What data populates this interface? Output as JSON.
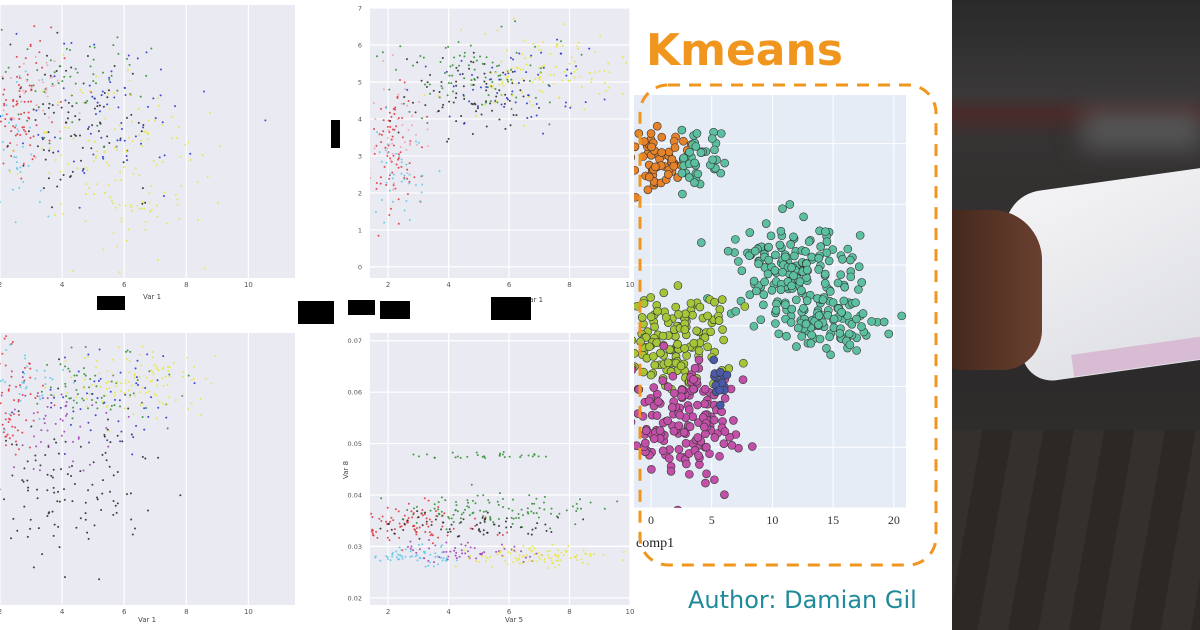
{
  "title": "Kmeans",
  "author": "Author: Damian Gil",
  "accent_orange": "#f0961e",
  "accent_teal": "#1f8a9a",
  "chart_data": [
    {
      "type": "scatter",
      "id": "plot-a",
      "xlabel": "Var 1",
      "ylabel": "",
      "xlim": [
        2,
        11.5
      ],
      "ylim": [
        0,
        10
      ],
      "xticks": [
        "2",
        "4",
        "6",
        "8",
        "10"
      ],
      "yticks": [],
      "clusters": [
        {
          "color": "#e0303a",
          "cx": 2.6,
          "cy": 6.3,
          "sx": 0.6,
          "sy": 1.3,
          "n": 90
        },
        {
          "color": "#5bc8e8",
          "cx": 2.4,
          "cy": 4.5,
          "sx": 0.5,
          "sy": 1.5,
          "n": 40
        },
        {
          "color": "#222222",
          "cx": 4.5,
          "cy": 5.8,
          "sx": 1.2,
          "sy": 1.3,
          "n": 90
        },
        {
          "color": "#2a8a2a",
          "cx": 4.5,
          "cy": 7.2,
          "sx": 1.3,
          "sy": 1.0,
          "n": 60
        },
        {
          "color": "#1f2ecc",
          "cx": 5.5,
          "cy": 6.0,
          "sx": 1.6,
          "sy": 1.3,
          "n": 70
        },
        {
          "color": "#e8e83a",
          "cx": 6.0,
          "cy": 3.8,
          "sx": 1.5,
          "sy": 1.9,
          "n": 150
        },
        {
          "color": "#f0a0b0",
          "cx": 3.0,
          "cy": 6.8,
          "sx": 0.7,
          "sy": 1.0,
          "n": 40
        }
      ]
    },
    {
      "type": "scatter",
      "id": "plot-b",
      "xlabel": "Var 1",
      "ylabel": "",
      "xlim": [
        1.4,
        10
      ],
      "ylim": [
        -0.3,
        7
      ],
      "xticks": [
        "2",
        "4",
        "6",
        "8",
        "10"
      ],
      "yticks": [
        "0",
        "1",
        "2",
        "3",
        "4",
        "5",
        "6",
        "7"
      ],
      "clusters": [
        {
          "color": "#e0303a",
          "cx": 2.2,
          "cy": 3.2,
          "sx": 0.4,
          "sy": 0.9,
          "n": 80
        },
        {
          "color": "#5bc8e8",
          "cx": 2.4,
          "cy": 2.6,
          "sx": 0.5,
          "sy": 0.6,
          "n": 40
        },
        {
          "color": "#f0a0b0",
          "cx": 2.3,
          "cy": 3.8,
          "sx": 0.5,
          "sy": 0.8,
          "n": 40
        },
        {
          "color": "#222222",
          "cx": 4.5,
          "cy": 4.6,
          "sx": 1.0,
          "sy": 0.6,
          "n": 80
        },
        {
          "color": "#2a8a2a",
          "cx": 5.0,
          "cy": 5.2,
          "sx": 1.5,
          "sy": 0.5,
          "n": 90
        },
        {
          "color": "#1f2ecc",
          "cx": 6.0,
          "cy": 4.9,
          "sx": 1.5,
          "sy": 0.6,
          "n": 60
        },
        {
          "color": "#e8e83a",
          "cx": 7.0,
          "cy": 5.2,
          "sx": 1.3,
          "sy": 0.5,
          "n": 110
        }
      ]
    },
    {
      "type": "scatter",
      "id": "plot-c",
      "xlabel": "Var 1",
      "ylabel": "",
      "xlim": [
        2,
        11.5
      ],
      "ylim": [
        0,
        10
      ],
      "xticks": [
        "2",
        "4",
        "6",
        "8",
        "10"
      ],
      "yticks": [],
      "clusters": [
        {
          "color": "#e0303a",
          "cx": 2.4,
          "cy": 7.5,
          "sx": 0.5,
          "sy": 1.2,
          "n": 80
        },
        {
          "color": "#5bc8e8",
          "cx": 2.6,
          "cy": 8.2,
          "sx": 0.7,
          "sy": 0.6,
          "n": 40
        },
        {
          "color": "#222222",
          "cx": 4.3,
          "cy": 4.5,
          "sx": 1.2,
          "sy": 1.6,
          "n": 120
        },
        {
          "color": "#9b3cb0",
          "cx": 3.5,
          "cy": 6.8,
          "sx": 1.0,
          "sy": 0.9,
          "n": 50
        },
        {
          "color": "#2a8a2a",
          "cx": 5.0,
          "cy": 8.0,
          "sx": 1.3,
          "sy": 0.7,
          "n": 60
        },
        {
          "color": "#1f2ecc",
          "cx": 5.5,
          "cy": 7.4,
          "sx": 1.5,
          "sy": 0.9,
          "n": 60
        },
        {
          "color": "#e8e83a",
          "cx": 6.6,
          "cy": 8.2,
          "sx": 1.3,
          "sy": 0.6,
          "n": 110
        }
      ]
    },
    {
      "type": "scatter",
      "id": "plot-d",
      "xlabel": "Var 5",
      "ylabel": "Var 8",
      "xlim": [
        1.4,
        10
      ],
      "ylim": [
        0.0186,
        0.0715
      ],
      "xticks": [
        "2",
        "4",
        "6",
        "8",
        "10"
      ],
      "yticks": [
        "0.02",
        "0.03",
        "0.04",
        "0.05",
        "0.06",
        "0.07"
      ],
      "clusters": [
        {
          "color": "#e0303a",
          "cx": 3.0,
          "cy": 0.0345,
          "sx": 1.0,
          "sy": 0.0018,
          "n": 90
        },
        {
          "color": "#2a8a2a",
          "cx": 5.5,
          "cy": 0.037,
          "sx": 1.6,
          "sy": 0.0015,
          "n": 110
        },
        {
          "color": "#222222",
          "cx": 5.0,
          "cy": 0.034,
          "sx": 1.5,
          "sy": 0.0012,
          "n": 60
        },
        {
          "color": "#5bc8e8",
          "cx": 2.8,
          "cy": 0.028,
          "sx": 0.8,
          "sy": 0.0009,
          "n": 60
        },
        {
          "color": "#9b3cb0",
          "cx": 4.5,
          "cy": 0.029,
          "sx": 1.2,
          "sy": 0.001,
          "n": 60
        },
        {
          "color": "#e8e83a",
          "cx": 7.0,
          "cy": 0.028,
          "sx": 1.2,
          "sy": 0.001,
          "n": 100
        },
        {
          "color": "#2a8a2a",
          "cx": 5.0,
          "cy": 0.0475,
          "sx": 1.4,
          "sy": 0.0003,
          "n": 30
        }
      ]
    },
    {
      "type": "scatter",
      "id": "kmeans",
      "title": "Kmeans",
      "xlabel": "comp1",
      "ylabel": "",
      "xlim": [
        -1.4,
        21
      ],
      "ylim": [
        0,
        34
      ],
      "xticks": [
        "0",
        "5",
        "10",
        "15",
        "20"
      ],
      "yticks": [],
      "clusters": [
        {
          "color": "#e5822a",
          "cx": 0.5,
          "cy": 29,
          "sx": 1.2,
          "sy": 1.3,
          "n": 60
        },
        {
          "color": "#5cc0a0",
          "cx": 3.6,
          "cy": 28.7,
          "sx": 1.0,
          "sy": 1.4,
          "n": 40
        },
        {
          "color": "#5cc0a0",
          "cx": 11.5,
          "cy": 19.5,
          "sx": 2.5,
          "sy": 2.0,
          "n": 170
        },
        {
          "color": "#5cc0a0",
          "cx": 14.5,
          "cy": 15,
          "sx": 2.5,
          "sy": 1.2,
          "n": 90
        },
        {
          "color": "#a6c63a",
          "cx": 1.5,
          "cy": 13.8,
          "sx": 2.3,
          "sy": 2.0,
          "n": 140
        },
        {
          "color": "#c250a8",
          "cx": 2.5,
          "cy": 6.8,
          "sx": 2.5,
          "sy": 2.3,
          "n": 170
        },
        {
          "color": "#4a5aa8",
          "cx": 5.7,
          "cy": 10.3,
          "sx": 0.4,
          "sy": 0.8,
          "n": 15
        }
      ]
    }
  ]
}
